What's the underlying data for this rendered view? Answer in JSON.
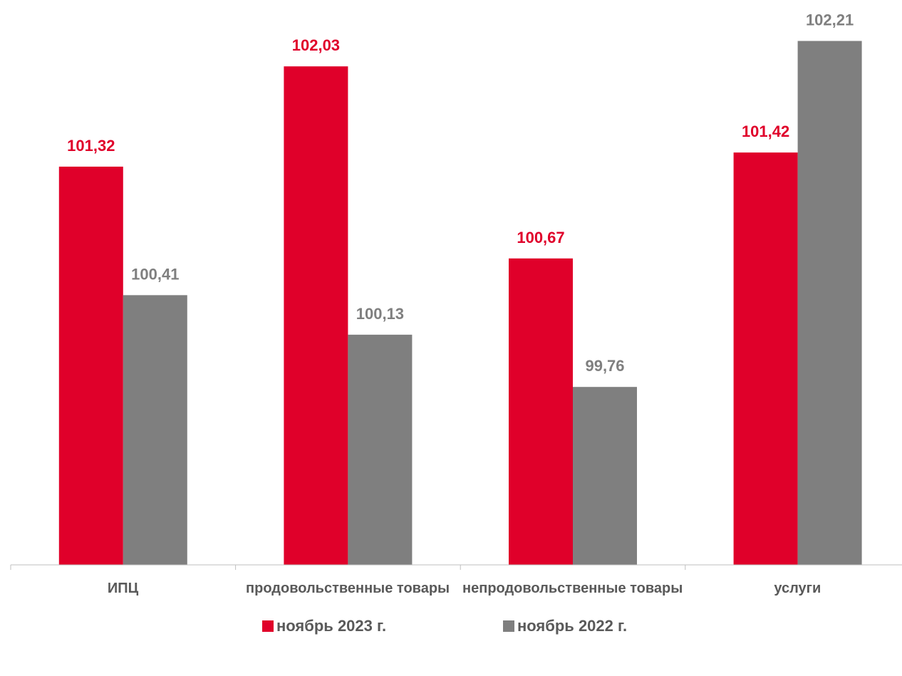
{
  "chart_data": {
    "type": "bar",
    "categories": [
      "ИПЦ",
      "продовольственные товары",
      "непродовольственные товары",
      "услуги"
    ],
    "series": [
      {
        "name": "ноябрь 2023 г.",
        "color": "#e0002a",
        "values": [
          101.32,
          102.03,
          100.67,
          101.42
        ],
        "value_labels": [
          "101,32",
          "102,03",
          "100,67",
          "101,42"
        ]
      },
      {
        "name": "ноябрь 2022 г.",
        "color": "#7f7f7f",
        "values": [
          100.41,
          100.13,
          99.76,
          102.21
        ],
        "value_labels": [
          "100,41",
          "100,13",
          "99,76",
          "102,21"
        ]
      }
    ],
    "ylim": [
      98.5,
      102.5
    ],
    "legend": "bottom"
  }
}
